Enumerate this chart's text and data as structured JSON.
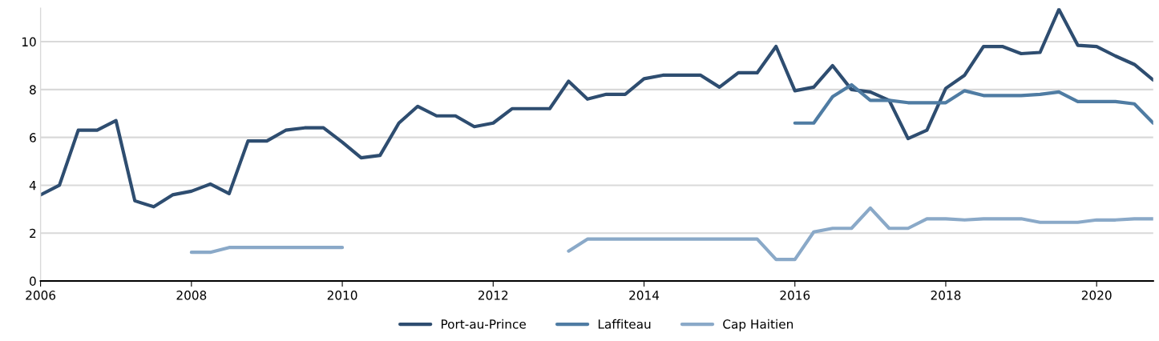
{
  "chart_data": {
    "type": "line",
    "x": [
      2006,
      2006.25,
      2006.5,
      2006.75,
      2007,
      2007.25,
      2007.5,
      2007.75,
      2008,
      2008.25,
      2008.5,
      2008.75,
      2009,
      2009.25,
      2009.5,
      2009.75,
      2010,
      2010.25,
      2010.5,
      2010.75,
      2011,
      2011.25,
      2011.5,
      2011.75,
      2012,
      2012.25,
      2012.5,
      2012.75,
      2013,
      2013.25,
      2013.5,
      2013.75,
      2014,
      2014.25,
      2014.5,
      2014.75,
      2015,
      2015.25,
      2015.5,
      2015.75,
      2016,
      2016.25,
      2016.5,
      2016.75,
      2017,
      2017.25,
      2017.5,
      2017.75,
      2018,
      2018.25,
      2018.5,
      2018.75,
      2019,
      2019.25,
      2019.5,
      2019.75,
      2020,
      2020.25,
      2020.5,
      2020.75
    ],
    "series": [
      {
        "name": "Port-au-Prince",
        "color": "#2e4d70",
        "values": [
          3.6,
          4.0,
          6.3,
          6.3,
          6.7,
          3.35,
          3.1,
          3.6,
          3.75,
          4.05,
          3.65,
          5.85,
          5.85,
          6.3,
          6.4,
          6.4,
          5.8,
          5.15,
          5.25,
          6.6,
          7.3,
          6.9,
          6.9,
          6.45,
          6.6,
          7.2,
          7.2,
          7.2,
          8.35,
          7.6,
          7.8,
          7.8,
          8.45,
          8.6,
          8.6,
          8.6,
          8.1,
          8.7,
          8.7,
          9.8,
          7.95,
          8.1,
          9.0,
          8.0,
          7.9,
          7.55,
          5.95,
          6.3,
          8.05,
          8.6,
          9.8,
          9.8,
          9.5,
          9.55,
          11.35,
          9.85,
          9.8,
          9.4,
          9.05,
          8.4
        ]
      },
      {
        "name": "Laffiteau",
        "color": "#4f7ca3",
        "values": [
          null,
          null,
          null,
          null,
          null,
          null,
          null,
          null,
          null,
          null,
          null,
          null,
          null,
          null,
          null,
          null,
          null,
          null,
          null,
          null,
          null,
          null,
          null,
          null,
          null,
          null,
          null,
          null,
          null,
          null,
          null,
          null,
          null,
          null,
          null,
          null,
          null,
          null,
          null,
          null,
          6.6,
          6.6,
          7.7,
          8.2,
          7.55,
          7.55,
          7.45,
          7.45,
          7.45,
          7.95,
          7.75,
          7.75,
          7.75,
          7.8,
          7.9,
          7.5,
          7.5,
          7.5,
          7.4,
          6.6
        ]
      },
      {
        "name": "Cap Haitien",
        "color": "#8aa9c8",
        "values": [
          null,
          null,
          null,
          null,
          null,
          null,
          null,
          null,
          1.2,
          1.2,
          1.4,
          1.4,
          1.4,
          1.4,
          1.4,
          1.4,
          1.4,
          null,
          null,
          null,
          null,
          null,
          null,
          null,
          null,
          null,
          null,
          null,
          1.25,
          1.75,
          1.75,
          1.75,
          1.75,
          1.75,
          1.75,
          1.75,
          1.75,
          1.75,
          1.75,
          0.9,
          0.9,
          2.05,
          2.2,
          2.2,
          3.05,
          2.2,
          2.2,
          2.6,
          2.6,
          2.55,
          2.6,
          2.6,
          2.6,
          2.45,
          2.45,
          2.45,
          2.55,
          2.55,
          2.6,
          2.6
        ]
      }
    ],
    "xlim": [
      2006,
      2020.75
    ],
    "xticks": [
      2006,
      2008,
      2010,
      2012,
      2014,
      2016,
      2018,
      2020
    ],
    "ylim": [
      0,
      11.4
    ],
    "yticks": [
      0,
      2,
      4,
      6,
      8,
      10
    ],
    "grid": "y",
    "legend": "bottom",
    "line_style": "solid"
  }
}
